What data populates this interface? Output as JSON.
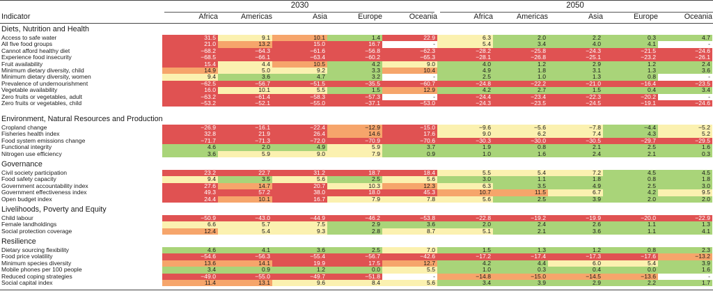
{
  "header": {
    "indicator_label": "Indicator",
    "years": [
      "2030",
      "2050"
    ],
    "regions": [
      "Africa",
      "Americas",
      "Asia",
      "Europe",
      "Oceania"
    ]
  },
  "colors": {
    "red": "#e05252",
    "orange": "#f6a56b",
    "yellow": "#fbf1b0",
    "green": "#a9d479",
    "none": "#ffffff"
  },
  "sections": [
    {
      "title": "Diets, Nutrition and Health",
      "rows": [
        {
          "label": "Access to safe water",
          "values": [
            "31.5",
            "9.1",
            "10.1",
            "1.4",
            "22.9",
            "6.3",
            "2.0",
            "2.2",
            "0.3",
            "4.7"
          ],
          "colors": [
            "r",
            "y",
            "o",
            "g",
            "r",
            "y",
            "g",
            "g",
            "g",
            "g"
          ]
        },
        {
          "label": "All five food groups",
          "values": [
            "21.0",
            "13.2",
            "15.0",
            "16.7",
            "-",
            "5.4",
            "3.4",
            "4.0",
            "4.1",
            "-"
          ],
          "colors": [
            "r",
            "o",
            "r",
            "r",
            "n",
            "y",
            "g",
            "g",
            "g",
            "n"
          ]
        },
        {
          "label": "Cannot afford healthy diet",
          "values": [
            "−68.2",
            "−64.3",
            "−61.6",
            "−56.8",
            "−62.3",
            "−28.2",
            "−25.8",
            "−24.3",
            "−21.5",
            "−24.6"
          ],
          "colors": [
            "r",
            "r",
            "r",
            "r",
            "r",
            "r",
            "r",
            "r",
            "r",
            "r"
          ]
        },
        {
          "label": "Experience food insecurity",
          "values": [
            "−68.5",
            "−66.1",
            "−63.4",
            "−60.2",
            "−65.3",
            "−28.1",
            "−26.8",
            "−25.1",
            "−23.2",
            "−26.1"
          ],
          "colors": [
            "r",
            "r",
            "r",
            "r",
            "r",
            "r",
            "r",
            "r",
            "r",
            "r"
          ]
        },
        {
          "label": "Fruit availability",
          "values": [
            "15.4",
            "4.4",
            "10.5",
            "4.2",
            "9.0",
            "4.0",
            "1.2",
            "2.9",
            "1.2",
            "2.4"
          ],
          "colors": [
            "r",
            "y",
            "o",
            "g",
            "y",
            "g",
            "g",
            "g",
            "g",
            "g"
          ]
        },
        {
          "label": "Minimum dietary diversity, child",
          "values": [
            "14.9",
            "5.0",
            "9.2",
            "3.3",
            "10.4",
            "4.9",
            "1.8",
            "3.1",
            "1.3",
            "3.6"
          ],
          "colors": [
            "o",
            "y",
            "y",
            "g",
            "o",
            "g",
            "g",
            "g",
            "g",
            "g"
          ]
        },
        {
          "label": "Minimum dietary diversity, women",
          "values": [
            "9.4",
            "3.6",
            "4.7",
            "3.2",
            "-",
            "2.5",
            "1.0",
            "1.3",
            "0.8",
            "-"
          ],
          "colors": [
            "y",
            "g",
            "g",
            "g",
            "n",
            "g",
            "g",
            "g",
            "g",
            "n"
          ]
        },
        {
          "label": "Prevalence of undernourishment",
          "values": [
            "−62.5",
            "−56.7",
            "−51.5",
            "−35.5",
            "−60.7",
            "−24.8",
            "−22.2",
            "−21.0",
            "−16.4",
            "−23.5"
          ],
          "colors": [
            "r",
            "r",
            "r",
            "r",
            "r",
            "r",
            "r",
            "r",
            "r",
            "r"
          ]
        },
        {
          "label": "Vegetable availability",
          "values": [
            "16.0",
            "10.1",
            "5.5",
            "1.5",
            "12.9",
            "4.2",
            "2.7",
            "1.5",
            "0.4",
            "3.4"
          ],
          "colors": [
            "r",
            "y",
            "y",
            "g",
            "o",
            "g",
            "g",
            "g",
            "g",
            "g"
          ]
        },
        {
          "label": "Zero fruits or vegetables, adult",
          "values": [
            "−63.2",
            "−61.4",
            "−58.3",
            "−57.3",
            "-",
            "−24.4",
            "−23.4",
            "−22.3",
            "−20.2",
            "-"
          ],
          "colors": [
            "r",
            "r",
            "r",
            "r",
            "n",
            "r",
            "r",
            "r",
            "r",
            "n"
          ]
        },
        {
          "label": "Zero fruits or vegetables, child",
          "values": [
            "−53.2",
            "−52.1",
            "−55.0",
            "−37.1",
            "−53.0",
            "−24.3",
            "−23.5",
            "−24.5",
            "−19.1",
            "−24.6"
          ],
          "colors": [
            "r",
            "r",
            "r",
            "r",
            "r",
            "r",
            "r",
            "r",
            "r",
            "r"
          ]
        }
      ]
    },
    {
      "title": "Environment, Natural Resources and Production",
      "rows": [
        {
          "label": "Cropland change",
          "values": [
            "−26.9",
            "−16.1",
            "−22.4",
            "−12.9",
            "−15.0",
            "−9.6",
            "−5.6",
            "−7.8",
            "−4.4",
            "−5.2"
          ],
          "colors": [
            "r",
            "r",
            "r",
            "o",
            "r",
            "y",
            "y",
            "y",
            "g",
            "y"
          ]
        },
        {
          "label": "Fisheries health index",
          "values": [
            "32.8",
            "21.9",
            "26.4",
            "14.6",
            "17.6",
            "9.0",
            "6.2",
            "7.4",
            "4.3",
            "5.2"
          ],
          "colors": [
            "r",
            "r",
            "r",
            "o",
            "r",
            "y",
            "y",
            "y",
            "g",
            "y"
          ]
        },
        {
          "label": "Food system emissions change",
          "values": [
            "−71.7",
            "−71.3",
            "−72.0",
            "−70.9",
            "−70.6",
            "−30.3",
            "−30.0",
            "−30.5",
            "−29.7",
            "−29.5"
          ],
          "colors": [
            "r",
            "r",
            "r",
            "r",
            "r",
            "r",
            "r",
            "r",
            "r",
            "r"
          ]
        },
        {
          "label": "Functional integrity",
          "values": [
            "4.6",
            "2.0",
            "4.9",
            "5.9",
            "3.7",
            "1.9",
            "0.8",
            "2.1",
            "2.5",
            "1.6"
          ],
          "colors": [
            "g",
            "g",
            "g",
            "y",
            "g",
            "g",
            "g",
            "g",
            "g",
            "g"
          ]
        },
        {
          "label": "Nitrogen use efficiency",
          "values": [
            "3.6",
            "5.9",
            "9.0",
            "7.9",
            "0.9",
            "1.0",
            "1.6",
            "2.4",
            "2.1",
            "0.3"
          ],
          "colors": [
            "g",
            "y",
            "y",
            "y",
            "g",
            "g",
            "g",
            "g",
            "g",
            "g"
          ]
        }
      ]
    },
    {
      "title": "Governance",
      "rows": [
        {
          "label": "Civil society participation",
          "values": [
            "23.2",
            "22.7",
            "31.2",
            "18.7",
            "18.4",
            "5.5",
            "5.4",
            "7.2",
            "4.5",
            "4.5"
          ],
          "colors": [
            "r",
            "r",
            "r",
            "r",
            "r",
            "y",
            "y",
            "y",
            "g",
            "g"
          ]
        },
        {
          "label": "Food safety capacity",
          "values": [
            "9.4",
            "3.5",
            "5.6",
            "2.5",
            "5.6",
            "3.0",
            "1.1",
            "1.8",
            "0.8",
            "1.8"
          ],
          "colors": [
            "y",
            "g",
            "y",
            "g",
            "y",
            "g",
            "g",
            "g",
            "g",
            "g"
          ]
        },
        {
          "label": "Government accountability index",
          "values": [
            "27.6",
            "14.7",
            "20.7",
            "10.3",
            "12.3",
            "6.3",
            "3.5",
            "4.9",
            "2.5",
            "3.0"
          ],
          "colors": [
            "r",
            "o",
            "r",
            "y",
            "o",
            "y",
            "g",
            "g",
            "g",
            "g"
          ]
        },
        {
          "label": "Government effectiveness index",
          "values": [
            "49.3",
            "57.2",
            "38.0",
            "18.0",
            "45.3",
            "10.7",
            "11.5",
            "6.7",
            "4.2",
            "9.5"
          ],
          "colors": [
            "r",
            "r",
            "r",
            "r",
            "r",
            "o",
            "o",
            "y",
            "g",
            "y"
          ]
        },
        {
          "label": "Open budget index",
          "values": [
            "24.4",
            "10.1",
            "16.7",
            "7.9",
            "7.8",
            "5.6",
            "2.5",
            "3.9",
            "2.0",
            "2.0"
          ],
          "colors": [
            "r",
            "o",
            "r",
            "y",
            "y",
            "y",
            "g",
            "g",
            "g",
            "g"
          ]
        }
      ]
    },
    {
      "title": "Livelihoods, Poverty and Equity",
      "rows": [
        {
          "label": "Child labour",
          "values": [
            "−50.9",
            "−43.0",
            "−44.9",
            "−46.2",
            "−53.8",
            "−22.8",
            "−19.2",
            "−19.9",
            "−20.0",
            "−22.9"
          ],
          "colors": [
            "r",
            "r",
            "r",
            "r",
            "r",
            "r",
            "r",
            "r",
            "r",
            "r"
          ]
        },
        {
          "label": "Female landholdings",
          "values": [
            "6.6",
            "5.7",
            "7.5",
            "2.9",
            "3.6",
            "2.0",
            "2.4",
            "2.6",
            "1.1",
            "1.3"
          ],
          "colors": [
            "y",
            "y",
            "y",
            "g",
            "g",
            "g",
            "g",
            "g",
            "g",
            "g"
          ]
        },
        {
          "label": "Social protection coverage",
          "values": [
            "12.4",
            "5.4",
            "9.3",
            "2.8",
            "8.7",
            "5.1",
            "2.1",
            "3.6",
            "1.1",
            "4.1"
          ],
          "colors": [
            "o",
            "y",
            "y",
            "g",
            "y",
            "y",
            "g",
            "g",
            "g",
            "g"
          ]
        }
      ]
    },
    {
      "title": "Resilience",
      "rows": [
        {
          "label": "Dietary sourcing flexibility",
          "values": [
            "4.6",
            "4.1",
            "3.6",
            "2.5",
            "7.0",
            "1.5",
            "1.3",
            "1.2",
            "0.8",
            "2.3"
          ],
          "colors": [
            "g",
            "g",
            "g",
            "g",
            "y",
            "g",
            "g",
            "g",
            "g",
            "g"
          ]
        },
        {
          "label": "Food price volatility",
          "values": [
            "−54.6",
            "−56.3",
            "−55.4",
            "−56.7",
            "−42.6",
            "−17.2",
            "−17.4",
            "−17.3",
            "−17.6",
            "−13.2"
          ],
          "colors": [
            "r",
            "r",
            "r",
            "r",
            "r",
            "r",
            "r",
            "r",
            "r",
            "o"
          ]
        },
        {
          "label": "Minimum species diversity",
          "values": [
            "13.6",
            "14.1",
            "19.9",
            "17.5",
            "12.7",
            "4.2",
            "4.4",
            "6.0",
            "5.4",
            "3.9"
          ],
          "colors": [
            "o",
            "o",
            "r",
            "r",
            "o",
            "g",
            "g",
            "y",
            "y",
            "g"
          ]
        },
        {
          "label": "Mobile phones per 100 people",
          "values": [
            "3.4",
            "0.9",
            "1.2",
            "0.0",
            "5.5",
            "1.0",
            "0.3",
            "0.4",
            "0.0",
            "1.6"
          ],
          "colors": [
            "g",
            "g",
            "g",
            "g",
            "y",
            "g",
            "g",
            "g",
            "g",
            "g"
          ]
        },
        {
          "label": "Reduced coping strategies",
          "values": [
            "−49.0",
            "−55.0",
            "−49.7",
            "−51.8",
            "-",
            "−14.8",
            "−15.0",
            "−14.5",
            "−13.6",
            "-"
          ],
          "colors": [
            "r",
            "r",
            "r",
            "r",
            "n",
            "o",
            "o",
            "o",
            "o",
            "n"
          ]
        },
        {
          "label": "Social capital index",
          "values": [
            "11.4",
            "13.1",
            "9.6",
            "8.4",
            "5.6",
            "3.4",
            "3.9",
            "2.9",
            "2.2",
            "1.7"
          ],
          "colors": [
            "o",
            "o",
            "y",
            "y",
            "y",
            "g",
            "g",
            "g",
            "g",
            "g"
          ]
        }
      ]
    }
  ]
}
